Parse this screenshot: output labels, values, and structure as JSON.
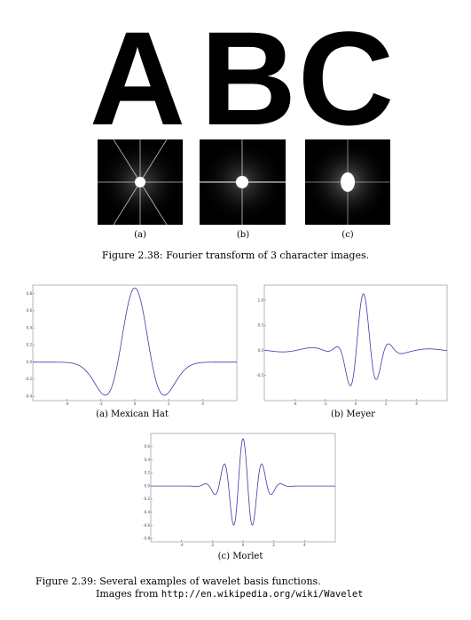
{
  "letters": [
    "A",
    "B",
    "C"
  ],
  "fig238": {
    "sublabels": [
      "(a)",
      "(b)",
      "(c)"
    ],
    "caption": "Figure 2.38: Fourier transform of 3 character images."
  },
  "fig239": {
    "caption_line1": "Figure 2.39: Several examples of wavelet basis functions.",
    "caption_prefix": "Images from",
    "caption_url": "http://en.wikipedia.org/wiki/Wavelet"
  },
  "chart_data": [
    {
      "type": "line",
      "caption": "(a) Mexican Hat",
      "xlim": [
        -6,
        6
      ],
      "ylim": [
        -0.45,
        0.9
      ],
      "xticks": [
        -4,
        -2,
        0,
        2,
        4
      ],
      "yticks": [
        0.8,
        0.6,
        0.4,
        0.2,
        0.0,
        -0.2,
        -0.4
      ],
      "color": "#3a3aa8",
      "function": "mexican_hat"
    },
    {
      "type": "line",
      "caption": "(b) Meyer",
      "xlim": [
        -6,
        6
      ],
      "ylim": [
        -1.0,
        1.3
      ],
      "xticks": [
        -4,
        -2,
        0,
        2,
        4
      ],
      "yticks": [
        1.0,
        0.5,
        0.0,
        -0.5
      ],
      "color": "#3a3aa8",
      "function": "meyer"
    },
    {
      "type": "line",
      "caption": "(c) Morlet",
      "xlim": [
        -6,
        6
      ],
      "ylim": [
        -0.85,
        0.8
      ],
      "xticks": [
        -4,
        -2,
        0,
        2,
        4
      ],
      "yticks": [
        0.6,
        0.4,
        0.2,
        0.0,
        -0.2,
        -0.4,
        -0.6,
        -0.8
      ],
      "color": "#3a3aa8",
      "function": "morlet"
    }
  ]
}
